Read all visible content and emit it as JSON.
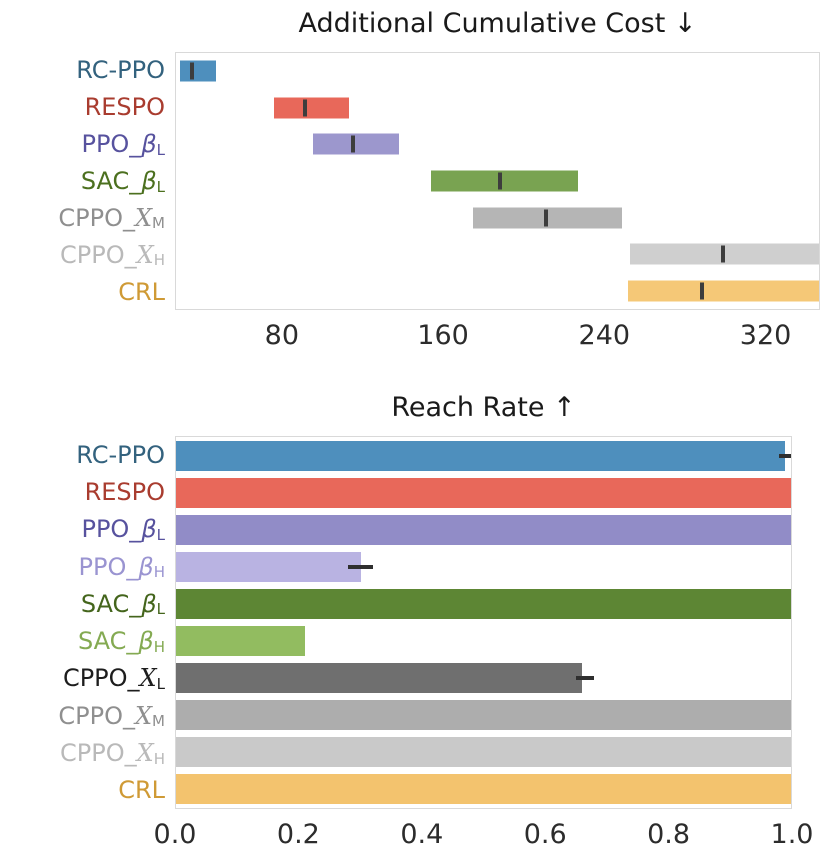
{
  "chart_data": [
    {
      "type": "range_bar",
      "title": "Additional Cumulative Cost ↓",
      "xlabel": "",
      "ylabel": "",
      "xlim": [
        27,
        347
      ],
      "grid": false,
      "legend": "none",
      "xticks": [
        80,
        160,
        240,
        320
      ],
      "xtick_labels": [
        "80",
        "160",
        "240",
        "320"
      ],
      "rows": [
        {
          "label": {
            "pre": "RC-PPO",
            "sym": "",
            "sub": ""
          },
          "label_color": "#33627e",
          "color": "#4e8fbd",
          "low": 29,
          "high": 47,
          "mean": 35
        },
        {
          "label": {
            "pre": "RESPO",
            "sym": "",
            "sub": ""
          },
          "label_color": "#a93c2f",
          "color": "#e8685a",
          "low": 76,
          "high": 113,
          "mean": 91
        },
        {
          "label": {
            "pre": "PPO_",
            "sym": "β",
            "sym_style": "italic",
            "sub": "L"
          },
          "label_color": "#57529e",
          "color": "#9c97cd",
          "low": 95,
          "high": 138,
          "mean": 115
        },
        {
          "label": {
            "pre": "SAC_",
            "sym": "β",
            "sym_style": "italic",
            "sub": "L"
          },
          "label_color": "#4c701f",
          "color": "#79a351",
          "low": 154,
          "high": 227,
          "mean": 188
        },
        {
          "label": {
            "pre": "CPPO_",
            "sym": "X",
            "sym_style": "script",
            "sub": "M"
          },
          "label_color": "#8f8f8f",
          "color": "#b5b5b5",
          "low": 175,
          "high": 249,
          "mean": 211
        },
        {
          "label": {
            "pre": "CPPO_",
            "sym": "X",
            "sym_style": "script",
            "sub": "H"
          },
          "label_color": "#b9b9b9",
          "color": "#cfcfcf",
          "low": 253,
          "high": 347,
          "mean": 299
        },
        {
          "label": {
            "pre": "CRL",
            "sym": "",
            "sub": ""
          },
          "label_color": "#cf9a35",
          "color": "#f5c877",
          "low": 252,
          "high": 347,
          "mean": 289
        }
      ]
    },
    {
      "type": "bar",
      "title": "Reach Rate ↑",
      "xlabel": "",
      "ylabel": "",
      "xlim": [
        0,
        1.0
      ],
      "grid": false,
      "legend": "none",
      "xticks": [
        0,
        0.2,
        0.4,
        0.6,
        0.8,
        1.0
      ],
      "xtick_labels": [
        "0.0",
        "0.2",
        "0.4",
        "0.6",
        "0.8",
        "1.0"
      ],
      "rows": [
        {
          "label": {
            "pre": "RC-PPO",
            "sym": "",
            "sub": ""
          },
          "label_color": "#33627e",
          "color": "#4e8fbd",
          "value": 0.99,
          "err": [
            0.98,
            1.0
          ]
        },
        {
          "label": {
            "pre": "RESPO",
            "sym": "",
            "sub": ""
          },
          "label_color": "#a93c2f",
          "color": "#e8685a",
          "value": 1.0
        },
        {
          "label": {
            "pre": "PPO_",
            "sym": "β",
            "sym_style": "italic",
            "sub": "L"
          },
          "label_color": "#57529e",
          "color": "#918cc7",
          "value": 1.0
        },
        {
          "label": {
            "pre": "PPO_",
            "sym": "β",
            "sym_style": "italic",
            "sub": "H"
          },
          "label_color": "#9a94d1",
          "color": "#b9b3e2",
          "value": 0.3,
          "err": [
            0.28,
            0.32
          ]
        },
        {
          "label": {
            "pre": "SAC_",
            "sym": "β",
            "sym_style": "italic",
            "sub": "L"
          },
          "label_color": "#44651c",
          "color": "#5d8634",
          "value": 1.0
        },
        {
          "label": {
            "pre": "SAC_",
            "sym": "β",
            "sym_style": "italic",
            "sub": "H"
          },
          "label_color": "#84aa52",
          "color": "#92bc60",
          "value": 0.21
        },
        {
          "label": {
            "pre": "CPPO_",
            "sym": "X",
            "sym_style": "script",
            "sub": "L"
          },
          "label_color": "#1d1d1d",
          "color": "#6f6f6f",
          "value": 0.66,
          "err": [
            0.65,
            0.68
          ]
        },
        {
          "label": {
            "pre": "CPPO_",
            "sym": "X",
            "sym_style": "script",
            "sub": "M"
          },
          "label_color": "#8f8f8f",
          "color": "#adadad",
          "value": 1.0
        },
        {
          "label": {
            "pre": "CPPO_",
            "sym": "X",
            "sym_style": "script",
            "sub": "H"
          },
          "label_color": "#b9b9b9",
          "color": "#c9c9c9",
          "value": 1.0
        },
        {
          "label": {
            "pre": "CRL",
            "sym": "",
            "sub": ""
          },
          "label_color": "#cf9a35",
          "color": "#f3c36e",
          "value": 1.0
        }
      ]
    }
  ]
}
